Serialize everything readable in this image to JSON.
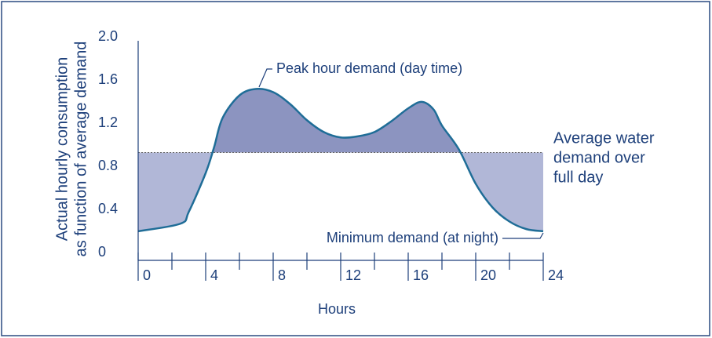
{
  "chart_data": {
    "type": "line",
    "x_label": "Hours",
    "y_label": [
      "Actual hourly consumption",
      "as function of average demand"
    ],
    "x": [
      0,
      2.5,
      3,
      4,
      4.5,
      5,
      6,
      7,
      8,
      9,
      10,
      11,
      12,
      13,
      14,
      15,
      16,
      16.8,
      17.5,
      18,
      19,
      20,
      21,
      22,
      23,
      24
    ],
    "series": [
      {
        "color": "#1f6d97",
        "values": [
          0.27,
          0.34,
          0.45,
          0.81,
          1.05,
          1.32,
          1.53,
          1.59,
          1.56,
          1.45,
          1.3,
          1.19,
          1.14,
          1.15,
          1.19,
          1.29,
          1.41,
          1.47,
          1.4,
          1.25,
          1.03,
          0.71,
          0.49,
          0.36,
          0.29,
          0.27
        ]
      }
    ],
    "average": 1.0,
    "above_color": "#8c94c0",
    "below_color": "#b1b7d7",
    "xlim": [
      0,
      24
    ],
    "xticks": [
      0,
      4,
      8,
      12,
      16,
      20,
      24
    ],
    "xminor": [
      2,
      6,
      10,
      14,
      18,
      22
    ],
    "ylim": [
      0,
      2.0
    ],
    "yticks": [
      {
        "value": 2.0,
        "label": "2.0"
      },
      {
        "value": 1.6,
        "label": "1.6"
      },
      {
        "value": 1.2,
        "label": "1.2"
      },
      {
        "value": 0.8,
        "label": "0.8"
      },
      {
        "value": 0.4,
        "label": "0.4"
      },
      0
    ],
    "annotations": {
      "peak": "Peak hour demand (day time)",
      "minimum": "Minimum demand (at night)",
      "average": [
        "Average water",
        "demand over",
        "full day"
      ]
    }
  }
}
